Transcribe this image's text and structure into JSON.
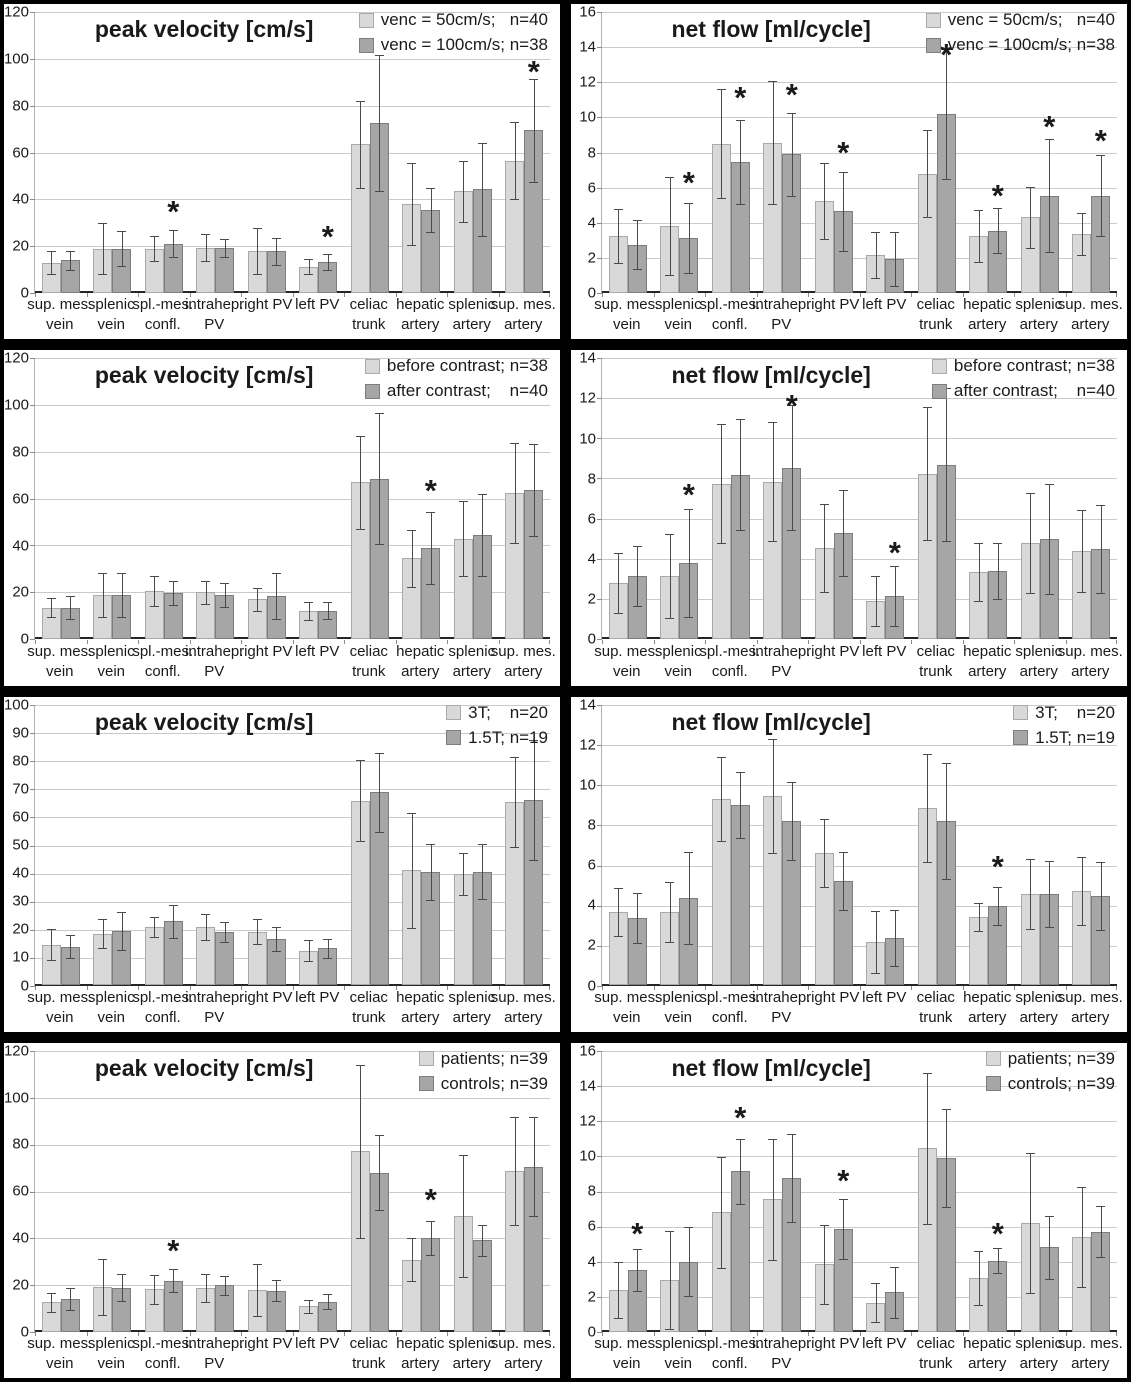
{
  "colors": {
    "page_background": "#000000",
    "panel_background": "#ffffff",
    "series1_fill": "#d9d9d9",
    "series1_border": "#a9a9a9",
    "series2_fill": "#a6a6a6",
    "series2_border": "#7d7d7d",
    "gridline": "#c9c9c9",
    "axis": "#262626",
    "error_bar": "#4a4a4a",
    "text": "#1a1a1a"
  },
  "categories": [
    [
      "sup. mes.",
      "vein"
    ],
    [
      "splenic",
      "vein"
    ],
    [
      "spl.-mes.",
      "confl."
    ],
    [
      "intrahep.",
      "PV"
    ],
    [
      "right PV",
      ""
    ],
    [
      "left PV",
      ""
    ],
    [
      "celiac",
      "trunk"
    ],
    [
      "hepatic",
      "artery"
    ],
    [
      "splenic",
      "artery"
    ],
    [
      "sup. mes.",
      "artery"
    ]
  ],
  "chart_data": [
    {
      "type": "bar",
      "title": "peak velocity [cm/s]",
      "ylim": [
        0,
        120
      ],
      "ytick_step": 20,
      "legend_position": "top-right",
      "grid": true,
      "series": [
        {
          "name": "venc = 50cm/s;   n=40",
          "values": [
            13,
            19,
            19,
            19.3,
            18,
            11.2,
            63.5,
            38,
            43.5,
            56.5
          ],
          "err": [
            5,
            11,
            5.5,
            5.7,
            9.8,
            3.2,
            18.5,
            17.5,
            13,
            16.5
          ]
        },
        {
          "name": "venc = 100cm/s; n=38",
          "values": [
            14,
            19,
            21,
            19.2,
            17.8,
            13.2,
            72.5,
            35.5,
            44.2,
            69.5
          ],
          "err": [
            4,
            7.5,
            5.8,
            4,
            5.7,
            3.4,
            29,
            9.5,
            20,
            22
          ]
        }
      ],
      "asterisks": [
        {
          "category_index": 2,
          "y": 36.5
        },
        {
          "category_index": 5,
          "y": 25.5
        },
        {
          "category_index": 9,
          "y": 96
        }
      ]
    },
    {
      "type": "bar",
      "title": "net flow [ml/cycle]",
      "ylim": [
        0,
        16
      ],
      "ytick_step": 2,
      "legend_position": "top-right",
      "grid": true,
      "series": [
        {
          "name": "venc = 50cm/s;   n=40",
          "values": [
            3.25,
            3.8,
            8.5,
            8.55,
            5.25,
            2.15,
            6.8,
            3.25,
            4.3,
            3.35
          ],
          "err": [
            1.55,
            2.8,
            3.1,
            3.5,
            2.15,
            1.3,
            2.5,
            1.5,
            1.75,
            1.2
          ]
        },
        {
          "name": "venc = 100cm/s; n=38",
          "values": [
            2.75,
            3.15,
            7.45,
            7.9,
            4.65,
            1.95,
            10.2,
            3.55,
            5.55,
            5.55
          ],
          "err": [
            1.4,
            2.0,
            2.4,
            2.35,
            2.25,
            1.55,
            3.7,
            1.3,
            3.2,
            2.3
          ]
        }
      ],
      "asterisks": [
        {
          "category_index": 1,
          "y": 6.5
        },
        {
          "category_index": 2,
          "y": 11.35
        },
        {
          "category_index": 3,
          "y": 11.5
        },
        {
          "category_index": 4,
          "y": 8.2
        },
        {
          "category_index": 6,
          "y": 13.8
        },
        {
          "category_index": 7,
          "y": 5.75
        },
        {
          "category_index": 8,
          "y": 9.7
        },
        {
          "category_index": 9,
          "y": 8.9
        }
      ]
    },
    {
      "type": "bar",
      "title": "peak velocity [cm/s]",
      "ylim": [
        0,
        120
      ],
      "ytick_step": 20,
      "legend_position": "top-right",
      "grid": true,
      "series": [
        {
          "name": "before contrast; n=38",
          "values": [
            13.5,
            19,
            20.5,
            20,
            17,
            12,
            67,
            34.5,
            43,
            62.5
          ],
          "err": [
            4,
            9.5,
            6.5,
            5,
            5,
            3.8,
            20,
            12,
            16,
            21.5
          ]
        },
        {
          "name": "after contrast;    n=40",
          "values": [
            13.5,
            18.8,
            19.8,
            19,
            18.5,
            12.2,
            68.5,
            39,
            44.5,
            63.8
          ],
          "err": [
            5,
            9.3,
            5,
            5.2,
            10,
            3.5,
            28,
            15.5,
            17.5,
            19.5
          ]
        }
      ],
      "asterisks": [
        {
          "category_index": 7,
          "y": 65
        }
      ]
    },
    {
      "type": "bar",
      "title": "net flow [ml/cycle]",
      "ylim": [
        0,
        14
      ],
      "ytick_step": 2,
      "legend_position": "top-right",
      "grid": true,
      "series": [
        {
          "name": "before contrast; n=38",
          "values": [
            2.8,
            3.15,
            7.75,
            7.85,
            4.55,
            1.9,
            8.25,
            3.35,
            4.8,
            4.4
          ],
          "err": [
            1.5,
            2.1,
            2.95,
            2.95,
            2.2,
            1.25,
            3.3,
            1.45,
            2.5,
            2.05
          ]
        },
        {
          "name": "after contrast;    n=40",
          "values": [
            3.15,
            3.8,
            8.2,
            8.55,
            5.3,
            2.15,
            8.7,
            3.4,
            5.0,
            4.5
          ],
          "err": [
            1.5,
            2.7,
            2.75,
            3.1,
            2.15,
            1.5,
            3.8,
            1.4,
            2.75,
            2.2
          ]
        }
      ],
      "asterisks": [
        {
          "category_index": 1,
          "y": 7.4
        },
        {
          "category_index": 3,
          "y": 11.8
        },
        {
          "category_index": 5,
          "y": 4.5
        }
      ]
    },
    {
      "type": "bar",
      "title": "peak velocity [cm/s]",
      "ylim": [
        0,
        100
      ],
      "ytick_step": 10,
      "legend_position": "top-right",
      "grid": true,
      "series": [
        {
          "name": "3T;    n=20",
          "values": [
            14.5,
            18.5,
            20.8,
            20.8,
            19.2,
            12.4,
            65.8,
            41,
            39.8,
            65.2
          ],
          "err": [
            5.5,
            5,
            3.5,
            4.6,
            4.4,
            3.7,
            14.5,
            20.5,
            7.5,
            16
          ]
        },
        {
          "name": "1.5T; n=19",
          "values": [
            13.8,
            19.3,
            22.8,
            19,
            16.4,
            13.2,
            68.8,
            40.5,
            40.5,
            66
          ],
          "err": [
            4,
            6.7,
            5.8,
            3.5,
            4.3,
            3.4,
            14,
            10,
            9.8,
            21.5
          ]
        }
      ],
      "asterisks": []
    },
    {
      "type": "bar",
      "title": "net flow [ml/cycle]",
      "ylim": [
        0,
        14
      ],
      "ytick_step": 2,
      "legend_position": "top-right",
      "grid": true,
      "series": [
        {
          "name": "3T;    n=20",
          "values": [
            3.65,
            3.65,
            9.3,
            9.45,
            6.6,
            2.15,
            8.85,
            3.4,
            4.55,
            4.7
          ],
          "err": [
            1.2,
            1.5,
            2.1,
            2.85,
            1.7,
            1.55,
            2.7,
            0.7,
            1.75,
            1.7
          ]
        },
        {
          "name": "1.5T; n=19",
          "values": [
            3.35,
            4.35,
            9.0,
            8.2,
            5.2,
            2.35,
            8.2,
            3.95,
            4.55,
            4.45
          ],
          "err": [
            1.25,
            2.3,
            1.65,
            1.95,
            1.45,
            1.4,
            2.9,
            0.95,
            1.65,
            1.7
          ]
        }
      ],
      "asterisks": [
        {
          "category_index": 7,
          "y": 6.1
        }
      ]
    },
    {
      "type": "bar",
      "title": "peak velocity [cm/s]",
      "ylim": [
        0,
        120
      ],
      "ytick_step": 20,
      "legend_position": "top-right",
      "grid": true,
      "series": [
        {
          "name": "patients; n=39",
          "values": [
            12.5,
            19,
            18.2,
            18.5,
            17.8,
            10.8,
            77,
            30.8,
            49.5,
            68.5
          ],
          "err": [
            4,
            12,
            6.2,
            6,
            11.2,
            2.8,
            37,
            9.2,
            26,
            23
          ]
        },
        {
          "name": "controls; n=39",
          "values": [
            14,
            18.8,
            21.8,
            19.8,
            17.6,
            12.8,
            68,
            40,
            39,
            70.5
          ],
          "err": [
            4.8,
            5.8,
            5,
            4.2,
            4.5,
            3.2,
            16,
            7.2,
            6.5,
            21
          ]
        }
      ],
      "asterisks": [
        {
          "category_index": 2,
          "y": 36
        },
        {
          "category_index": 7,
          "y": 58
        }
      ]
    },
    {
      "type": "bar",
      "title": "net flow [ml/cycle]",
      "ylim": [
        0,
        16
      ],
      "ytick_step": 2,
      "legend_position": "top-right",
      "grid": true,
      "series": [
        {
          "name": "patients; n=39",
          "values": [
            2.4,
            2.95,
            6.8,
            7.55,
            3.85,
            1.65,
            10.45,
            3.05,
            6.2,
            5.4
          ],
          "err": [
            1.6,
            2.8,
            3.15,
            3.45,
            2.25,
            1.1,
            4.3,
            1.55,
            4.0,
            2.85
          ]
        },
        {
          "name": "controls; n=39",
          "values": [
            3.5,
            4.0,
            9.15,
            8.75,
            5.85,
            2.25,
            9.9,
            4.05,
            4.8,
            5.7
          ],
          "err": [
            1.2,
            1.95,
            1.85,
            2.5,
            1.7,
            1.45,
            2.8,
            0.7,
            1.8,
            1.45
          ]
        }
      ],
      "asterisks": [
        {
          "category_index": 0,
          "y": 5.8
        },
        {
          "category_index": 2,
          "y": 12.4
        },
        {
          "category_index": 4,
          "y": 8.8
        },
        {
          "category_index": 7,
          "y": 5.8
        }
      ]
    }
  ]
}
